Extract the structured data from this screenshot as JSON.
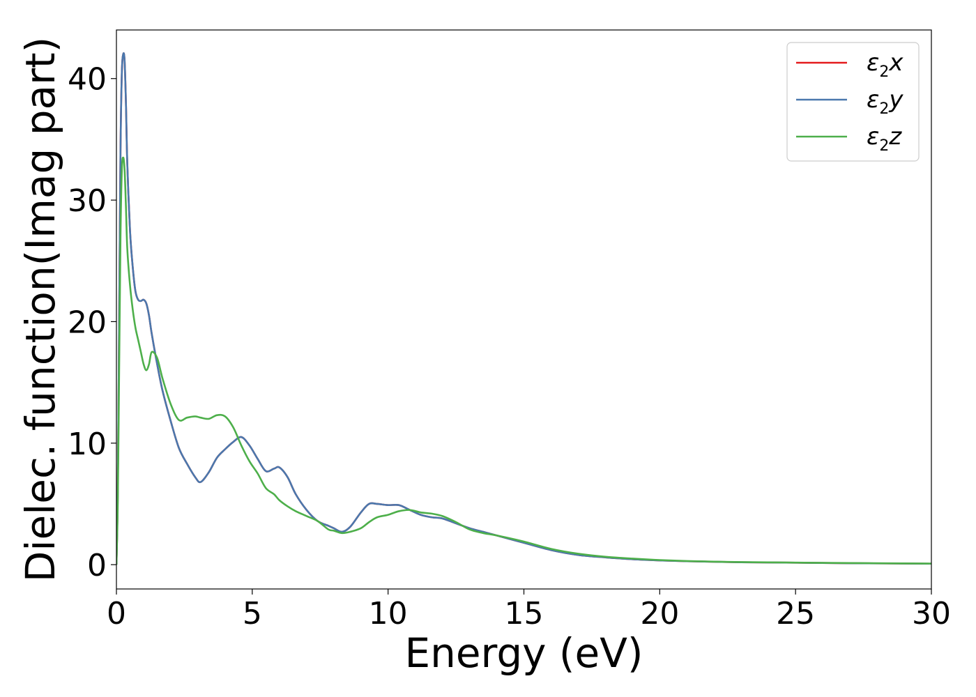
{
  "chart_data": {
    "type": "line",
    "title": "",
    "xlabel": "Energy (eV)",
    "ylabel": "Dielec. function(Imag part)",
    "xlim": [
      0,
      30
    ],
    "ylim": [
      -2,
      44
    ],
    "xticks": [
      0,
      5,
      10,
      15,
      20,
      25,
      30
    ],
    "yticks": [
      0,
      10,
      20,
      30,
      40
    ],
    "grid": false,
    "legend_position": "top-right",
    "series": [
      {
        "name": "ε2x",
        "legend_base": "ε",
        "legend_sub": "2",
        "legend_var": "x",
        "color": "#e41a1c",
        "x": [
          0,
          0.05,
          0.1,
          0.15,
          0.2,
          0.25,
          0.3,
          0.35,
          0.4,
          0.5,
          0.6,
          0.7,
          0.8,
          0.9,
          1.0,
          1.1,
          1.2,
          1.3,
          1.5,
          1.7,
          2.0,
          2.3,
          2.6,
          2.9,
          3.1,
          3.4,
          3.7,
          4.0,
          4.3,
          4.6,
          4.9,
          5.2,
          5.5,
          5.8,
          6.0,
          6.3,
          6.6,
          7.0,
          7.4,
          7.8,
          8.0,
          8.3,
          8.6,
          9.0,
          9.3,
          9.6,
          10.0,
          10.4,
          10.8,
          11.2,
          11.6,
          12.0,
          12.5,
          13.0,
          13.5,
          14.0,
          15.0,
          16.0,
          17.0,
          18.0,
          19.0,
          20.0,
          21.0,
          22.0,
          23.0,
          25.0,
          27.0,
          30.0
        ],
        "y": [
          0,
          6,
          20,
          34,
          40.5,
          42,
          41.5,
          38,
          33,
          27.5,
          24.5,
          22.5,
          21.8,
          21.7,
          21.8,
          21.5,
          20.5,
          19.0,
          16.5,
          14.3,
          11.8,
          9.6,
          8.3,
          7.2,
          6.8,
          7.6,
          8.8,
          9.5,
          10.1,
          10.5,
          9.8,
          8.7,
          7.7,
          7.9,
          8.0,
          7.2,
          5.8,
          4.5,
          3.6,
          3.2,
          3.0,
          2.7,
          3.1,
          4.3,
          5.0,
          5.0,
          4.9,
          4.9,
          4.5,
          4.1,
          3.9,
          3.8,
          3.4,
          3.0,
          2.7,
          2.4,
          1.8,
          1.2,
          0.8,
          0.6,
          0.45,
          0.35,
          0.28,
          0.24,
          0.2,
          0.16,
          0.12,
          0.08
        ]
      },
      {
        "name": "ε2y",
        "legend_base": "ε",
        "legend_sub": "2",
        "legend_var": "y",
        "color": "#4a78ad",
        "x": [
          0,
          0.05,
          0.1,
          0.15,
          0.2,
          0.25,
          0.3,
          0.35,
          0.4,
          0.5,
          0.6,
          0.7,
          0.8,
          0.9,
          1.0,
          1.1,
          1.2,
          1.3,
          1.5,
          1.7,
          2.0,
          2.3,
          2.6,
          2.9,
          3.1,
          3.4,
          3.7,
          4.0,
          4.3,
          4.6,
          4.9,
          5.2,
          5.5,
          5.8,
          6.0,
          6.3,
          6.6,
          7.0,
          7.4,
          7.8,
          8.0,
          8.3,
          8.6,
          9.0,
          9.3,
          9.6,
          10.0,
          10.4,
          10.8,
          11.2,
          11.6,
          12.0,
          12.5,
          13.0,
          13.5,
          14.0,
          15.0,
          16.0,
          17.0,
          18.0,
          19.0,
          20.0,
          21.0,
          22.0,
          23.0,
          25.0,
          27.0,
          30.0
        ],
        "y": [
          0,
          6,
          20,
          34,
          40.5,
          42,
          41.5,
          38,
          33,
          27.5,
          24.5,
          22.5,
          21.8,
          21.7,
          21.8,
          21.5,
          20.5,
          19.0,
          16.5,
          14.3,
          11.8,
          9.6,
          8.3,
          7.2,
          6.8,
          7.6,
          8.8,
          9.5,
          10.1,
          10.5,
          9.8,
          8.7,
          7.7,
          7.9,
          8.0,
          7.2,
          5.8,
          4.5,
          3.6,
          3.2,
          3.0,
          2.7,
          3.1,
          4.3,
          5.0,
          5.0,
          4.9,
          4.9,
          4.5,
          4.1,
          3.9,
          3.8,
          3.4,
          3.0,
          2.7,
          2.4,
          1.8,
          1.2,
          0.8,
          0.6,
          0.45,
          0.35,
          0.28,
          0.24,
          0.2,
          0.16,
          0.12,
          0.08
        ]
      },
      {
        "name": "ε2z",
        "legend_base": "ε",
        "legend_sub": "2",
        "legend_var": "z",
        "color": "#4daf4a",
        "x": [
          0,
          0.05,
          0.1,
          0.15,
          0.2,
          0.25,
          0.3,
          0.35,
          0.4,
          0.5,
          0.6,
          0.7,
          0.8,
          0.9,
          1.0,
          1.1,
          1.2,
          1.3,
          1.5,
          1.7,
          2.0,
          2.3,
          2.6,
          2.9,
          3.1,
          3.4,
          3.7,
          4.0,
          4.3,
          4.6,
          4.9,
          5.2,
          5.5,
          5.8,
          6.0,
          6.3,
          6.6,
          7.0,
          7.4,
          7.8,
          8.0,
          8.3,
          8.6,
          9.0,
          9.3,
          9.6,
          10.0,
          10.4,
          10.8,
          11.2,
          11.6,
          12.0,
          12.5,
          13.0,
          13.5,
          14.0,
          15.0,
          16.0,
          17.0,
          18.0,
          19.0,
          20.0,
          21.0,
          22.0,
          23.0,
          25.0,
          27.0,
          30.0
        ],
        "y": [
          0,
          5,
          16,
          27,
          32.5,
          33.5,
          32.5,
          29.5,
          26,
          23,
          21,
          19.5,
          18.5,
          17.5,
          16.5,
          16.0,
          16.5,
          17.5,
          17.0,
          15.3,
          13.2,
          11.9,
          12.1,
          12.2,
          12.1,
          12.0,
          12.3,
          12.2,
          11.3,
          9.8,
          8.5,
          7.5,
          6.3,
          5.8,
          5.3,
          4.8,
          4.4,
          4.0,
          3.6,
          2.9,
          2.8,
          2.6,
          2.7,
          3.0,
          3.5,
          3.9,
          4.1,
          4.4,
          4.5,
          4.3,
          4.2,
          4.0,
          3.5,
          2.9,
          2.6,
          2.4,
          1.9,
          1.3,
          0.9,
          0.65,
          0.5,
          0.38,
          0.3,
          0.25,
          0.21,
          0.17,
          0.13,
          0.09
        ]
      }
    ]
  }
}
